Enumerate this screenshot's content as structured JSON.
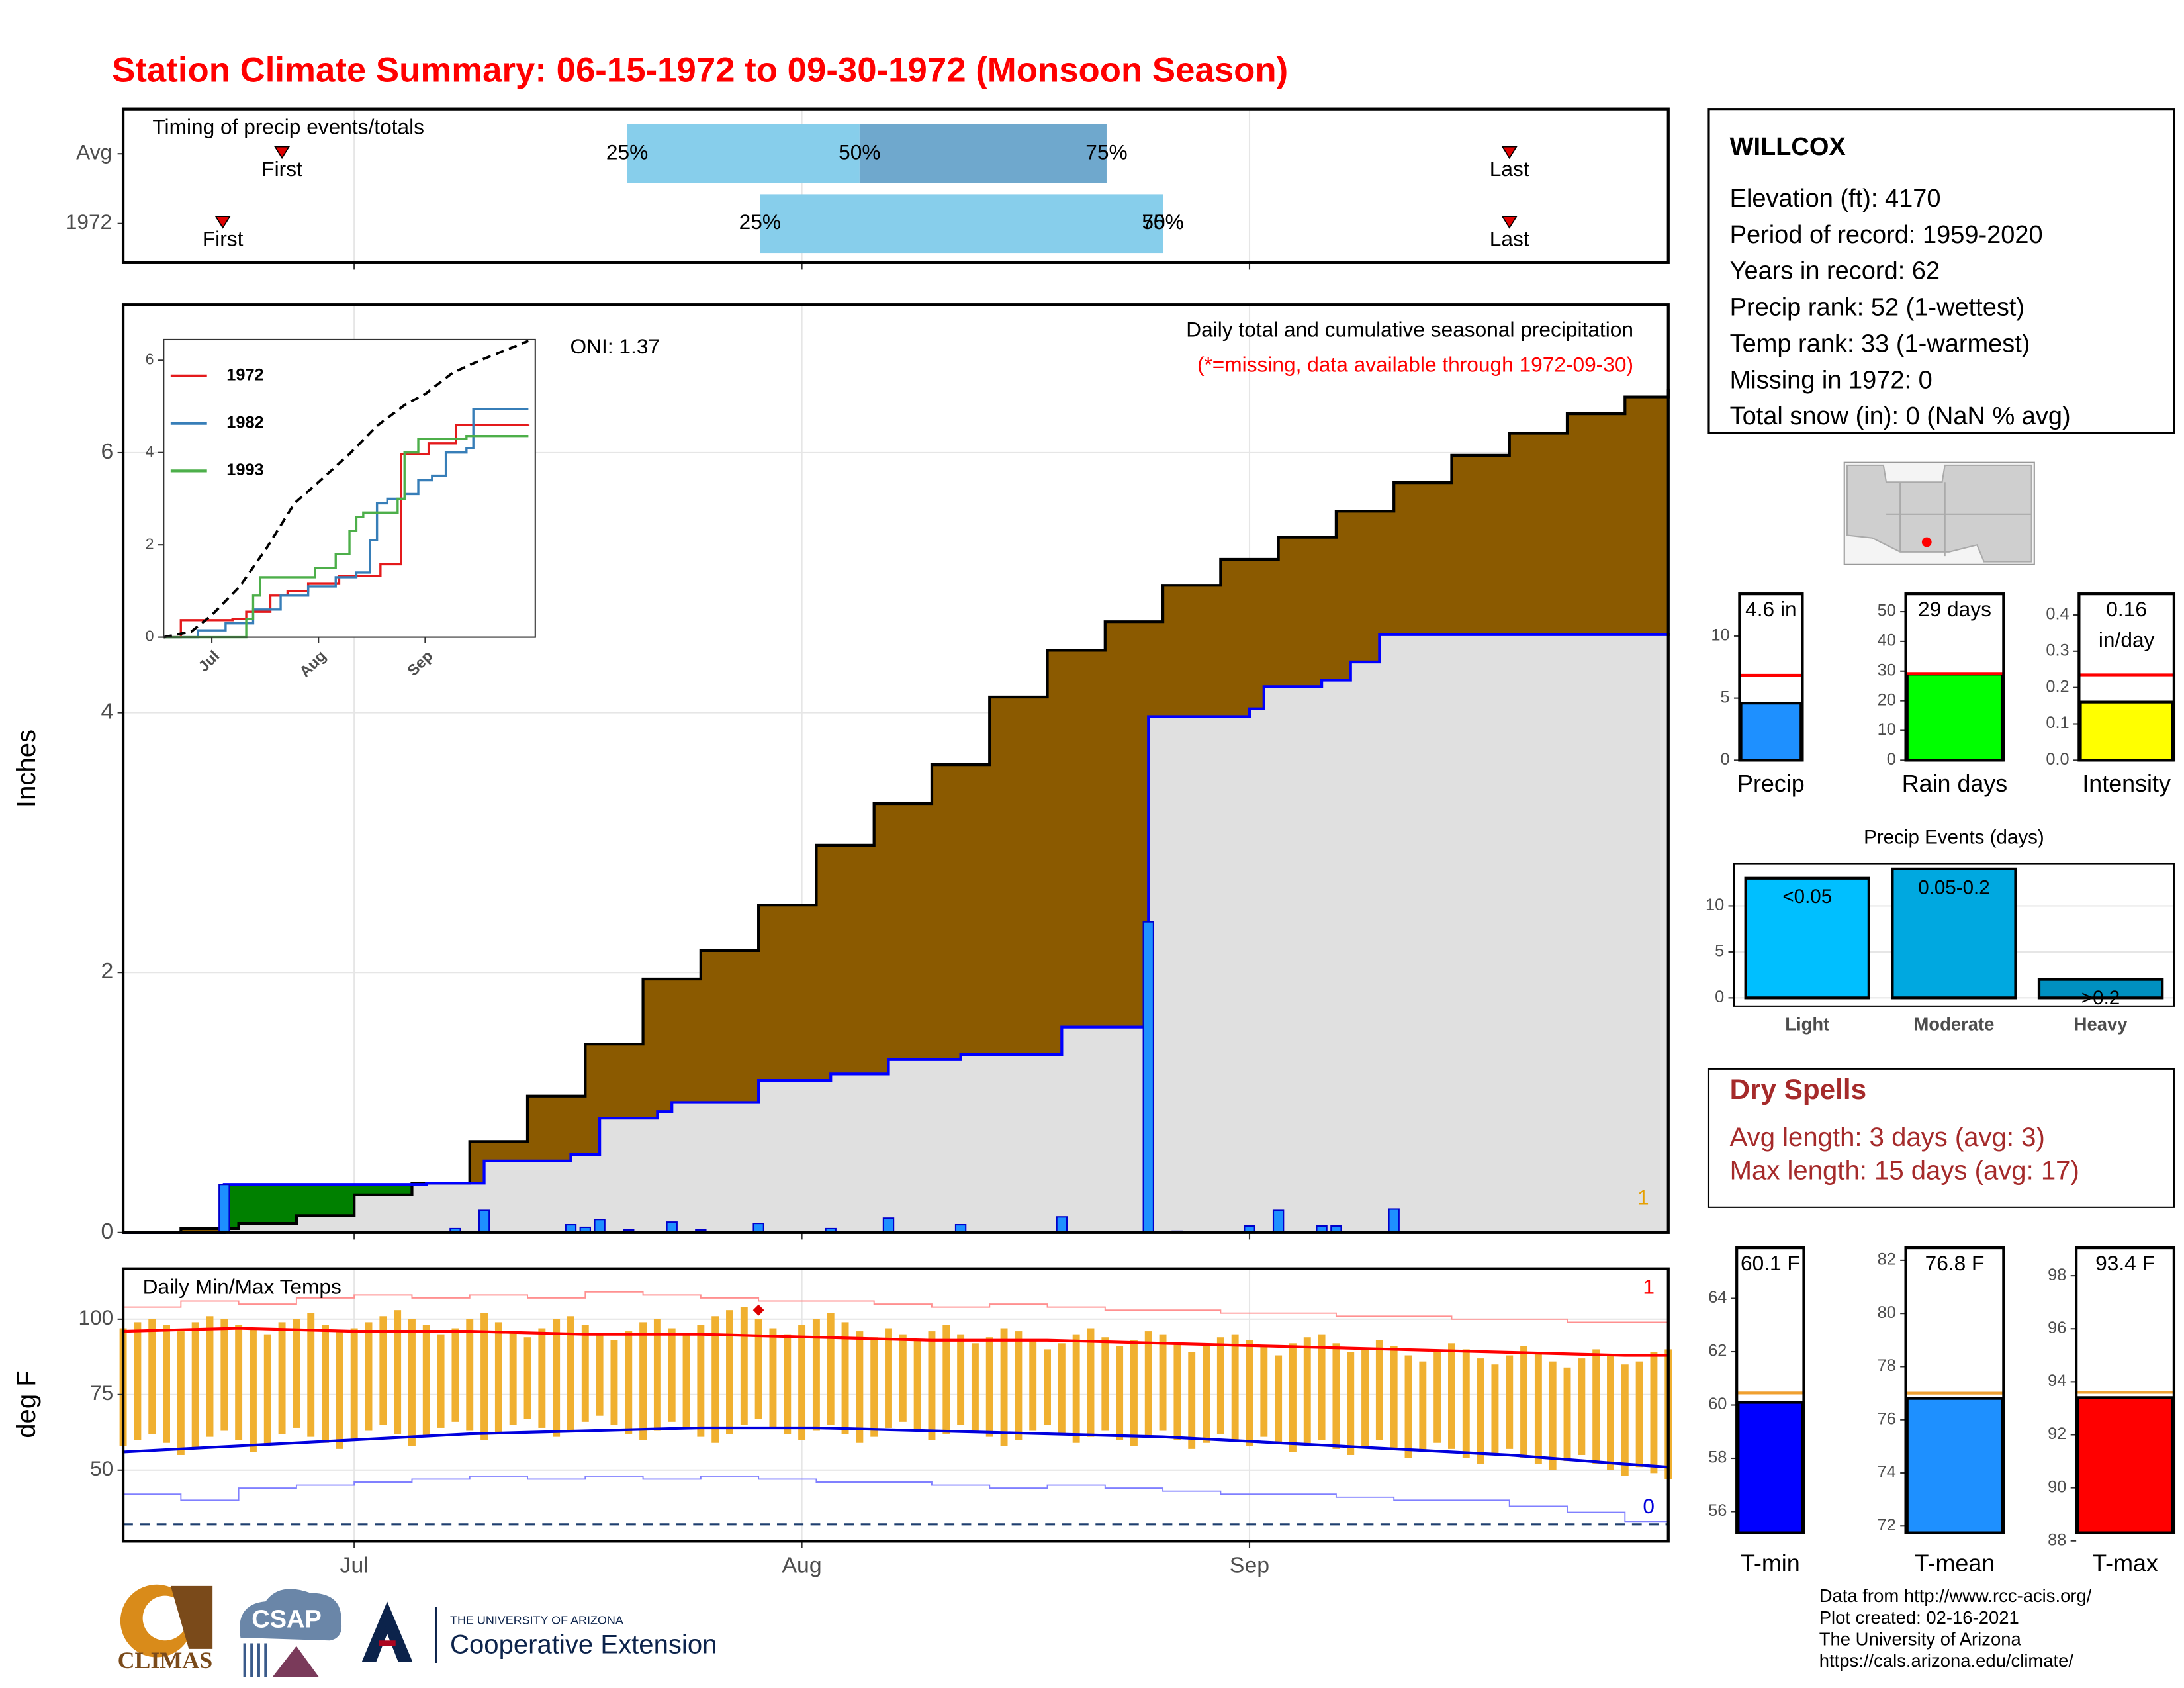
{
  "title": "Station Climate Summary: 06-15-1972 to 09-30-1972 (Monsoon Season)",
  "station": {
    "name": "WILLCOX",
    "lines": [
      "Elevation (ft): 4170",
      "Period of record: 1959-2020",
      "Years in record: 62",
      "Precip rank: 52 (1-wettest)",
      "Temp rank: 33 (1-warmest)",
      "Missing in 1972: 0",
      "Total snow (in): 0 (NaN % avg)"
    ]
  },
  "dry_spells": {
    "title": "Dry Spells",
    "lines": [
      "Avg length: 3 days (avg: 3)",
      "Max length: 15 days (avg: 17)"
    ]
  },
  "footer": [
    "Data from http://www.rcc-acis.org/",
    "Plot created: 02-16-2021",
    "The University of Arizona",
    "https://cals.arizona.edu/climate/"
  ],
  "logos": {
    "climas": "CLIMAS",
    "csap": "CSAP",
    "university": "THE UNIVERSITY OF ARIZONA",
    "extension": "Cooperative Extension"
  },
  "chart_data": [
    {
      "type": "timing",
      "title": "Timing of precip events/totals",
      "xlim": [
        0,
        107
      ],
      "xticks": [
        16,
        47,
        78
      ],
      "rows": [
        "Avg",
        "1972"
      ],
      "first": [
        11,
        6.9
      ],
      "q25": [
        34.9,
        44.1
      ],
      "q50": [
        51,
        72
      ],
      "q75": [
        68.1,
        72
      ],
      "last": [
        96,
        96
      ],
      "first_label": "First",
      "last_label": "Last",
      "quantile_labels": [
        "25%",
        "50%",
        "75%"
      ],
      "colors": [
        "#87ceeb",
        "#6fa8cd"
      ],
      "marker_color": "#e00000"
    },
    {
      "type": "precip",
      "ylabel": "Inches",
      "xlim": [
        0,
        107
      ],
      "ylim": [
        0,
        7.14
      ],
      "xticks": [
        16,
        47,
        78
      ],
      "yticks": [
        0,
        2,
        4,
        6
      ],
      "grid": true,
      "subtitle": "Daily total and cumulative seasonal precipitation",
      "note": "(*=missing, data available through 1972-09-30)",
      "oni": "ONI: 1.37",
      "count_label": "1",
      "average": {
        "x": [
          0,
          4,
          8,
          12,
          16,
          20,
          24,
          28,
          32,
          36,
          40,
          44,
          48,
          52,
          56,
          60,
          64,
          68,
          72,
          76,
          80,
          84,
          88,
          92,
          96,
          100,
          104,
          107
        ],
        "values": [
          0.0,
          0.03,
          0.07,
          0.13,
          0.29,
          0.38,
          0.7,
          1.05,
          1.45,
          1.95,
          2.17,
          2.52,
          2.98,
          3.3,
          3.6,
          4.12,
          4.48,
          4.7,
          4.98,
          5.18,
          5.35,
          5.55,
          5.77,
          5.98,
          6.15,
          6.3,
          6.43,
          6.49
        ]
      },
      "season": {
        "x": [
          0,
          7,
          21,
          25,
          31,
          33,
          37,
          38,
          44,
          49,
          53,
          58,
          65,
          71,
          78,
          79,
          83,
          85,
          87,
          107
        ],
        "values": [
          0,
          0.37,
          0.38,
          0.55,
          0.6,
          0.88,
          0.93,
          1.0,
          1.17,
          1.22,
          1.33,
          1.37,
          1.58,
          3.97,
          4.03,
          4.2,
          4.25,
          4.39,
          4.6,
          4.61
        ]
      },
      "daily": {
        "x": [
          7,
          23,
          25,
          31,
          32,
          33,
          35,
          38,
          40,
          44,
          49,
          53,
          58,
          65,
          71,
          73,
          78,
          80,
          83,
          84,
          88
        ],
        "values": [
          0.37,
          0.03,
          0.17,
          0.06,
          0.04,
          0.1,
          0.02,
          0.08,
          0.02,
          0.07,
          0.03,
          0.11,
          0.06,
          0.12,
          2.39,
          0.01,
          0.05,
          0.17,
          0.05,
          0.05,
          0.18
        ]
      },
      "above_color": "#008000",
      "below_color": "#8b5a00",
      "base_color": "#e0e0e0",
      "line_color": "#0000ff",
      "average_line_color": "#000000",
      "bar_color": "#1e90ff",
      "count_color": "#e69f00"
    },
    {
      "type": "line",
      "xlim": [
        2,
        110
      ],
      "ylim": [
        0,
        6.45
      ],
      "xticks": [
        {
          "value": 16,
          "label": "Jul"
        },
        {
          "value": 47,
          "label": "Aug"
        },
        {
          "value": 78,
          "label": "Sep"
        }
      ],
      "yticks": [
        0,
        2,
        4,
        6
      ],
      "average": {
        "color": "#000000",
        "x": [
          2,
          10,
          16,
          24,
          32,
          40,
          47,
          56,
          64,
          72,
          78,
          86,
          94,
          102,
          108
        ],
        "values": [
          0,
          0.12,
          0.48,
          1.09,
          1.94,
          2.9,
          3.36,
          3.97,
          4.58,
          5.03,
          5.27,
          5.73,
          6.0,
          6.24,
          6.42
        ]
      },
      "series": [
        {
          "name": "1972",
          "color": "#e41a1c",
          "x": [
            2,
            7,
            22,
            26,
            33,
            38,
            44,
            53,
            65,
            71,
            79,
            87,
            108
          ],
          "values": [
            0,
            0.37,
            0.4,
            0.55,
            0.9,
            1.0,
            1.17,
            1.33,
            1.58,
            3.97,
            4.2,
            4.6,
            4.61
          ]
        },
        {
          "name": "1982",
          "color": "#377eb8",
          "x": [
            2,
            12,
            20,
            28,
            36,
            44,
            52,
            58,
            62,
            64,
            67,
            72,
            76,
            80,
            84,
            90,
            92,
            108
          ],
          "values": [
            0,
            0.15,
            0.3,
            0.6,
            0.9,
            1.1,
            1.3,
            1.4,
            2.1,
            2.9,
            3.0,
            3.1,
            3.4,
            3.5,
            4.0,
            4.1,
            4.94,
            4.94
          ]
        },
        {
          "name": "1993",
          "color": "#4daf4a",
          "x": [
            2,
            26,
            28,
            30,
            40,
            46,
            52,
            56,
            58,
            60,
            66,
            70,
            72,
            76,
            78,
            90,
            108
          ],
          "values": [
            0,
            0.4,
            0.9,
            1.3,
            1.3,
            1.5,
            1.8,
            2.3,
            2.6,
            2.7,
            2.7,
            3.0,
            4.0,
            4.3,
            4.3,
            4.36,
            4.36
          ]
        }
      ]
    },
    {
      "type": "temps",
      "title": "Daily Min/Max Temps",
      "ylabel": "deg F",
      "xlim": [
        0,
        107
      ],
      "ylim": [
        26.4,
        116.7
      ],
      "xticks": [
        {
          "value": 16,
          "label": "Jul"
        },
        {
          "value": 47,
          "label": "Aug"
        },
        {
          "value": 78,
          "label": "Sep"
        }
      ],
      "yticks": [
        50,
        75,
        100
      ],
      "grid": true,
      "daily_max": [
        97,
        99,
        100,
        98,
        96,
        99,
        101,
        100,
        98,
        97,
        95,
        99,
        100,
        102,
        98,
        96,
        97,
        99,
        101,
        103,
        100,
        98,
        95,
        97,
        100,
        102,
        99,
        96,
        94,
        97,
        100,
        101,
        98,
        95,
        93,
        96,
        99,
        100,
        97,
        95,
        98,
        101,
        103,
        104,
        100,
        97,
        95,
        98,
        100,
        102,
        99,
        96,
        94,
        97,
        95,
        93,
        96,
        98,
        95,
        92,
        94,
        97,
        96,
        93,
        90,
        92,
        95,
        97,
        94,
        91,
        93,
        96,
        95,
        92,
        89,
        91,
        94,
        95,
        93,
        91,
        88,
        92,
        94,
        95,
        92,
        89,
        90,
        93,
        91,
        88,
        86,
        89,
        92,
        90,
        87,
        85,
        88,
        91,
        89,
        86,
        84,
        87,
        90,
        88,
        85,
        86,
        89,
        90
      ],
      "daily_min": [
        58,
        60,
        62,
        59,
        55,
        57,
        61,
        63,
        60,
        56,
        58,
        62,
        64,
        61,
        59,
        57,
        60,
        63,
        65,
        62,
        58,
        61,
        64,
        66,
        63,
        60,
        62,
        65,
        67,
        64,
        61,
        63,
        66,
        68,
        65,
        62,
        60,
        63,
        66,
        64,
        61,
        59,
        62,
        65,
        67,
        64,
        62,
        60,
        63,
        65,
        62,
        59,
        61,
        64,
        66,
        63,
        60,
        62,
        65,
        63,
        61,
        58,
        60,
        63,
        65,
        62,
        59,
        61,
        63,
        60,
        58,
        61,
        63,
        60,
        57,
        59,
        62,
        60,
        58,
        61,
        59,
        56,
        58,
        60,
        57,
        55,
        58,
        60,
        57,
        54,
        56,
        59,
        57,
        54,
        52,
        55,
        57,
        54,
        52,
        50,
        53,
        55,
        52,
        50,
        48,
        51,
        49,
        47
      ],
      "avg_max": {
        "x": [
          0,
          8,
          16,
          24,
          32,
          40,
          48,
          56,
          64,
          72,
          80,
          88,
          96,
          104,
          107
        ],
        "values": [
          96,
          97,
          96,
          96,
          95,
          95,
          94,
          93,
          93,
          92,
          91,
          90,
          89,
          88,
          88
        ]
      },
      "avg_min": {
        "x": [
          0,
          8,
          16,
          24,
          32,
          40,
          48,
          56,
          64,
          72,
          80,
          88,
          96,
          104,
          107
        ],
        "values": [
          56,
          58,
          60,
          62,
          63,
          64,
          64,
          63,
          62,
          61,
          59,
          57,
          55,
          52,
          51
        ]
      },
      "record_max": {
        "x": [
          0,
          4,
          8,
          12,
          16,
          20,
          24,
          28,
          32,
          36,
          40,
          44,
          48,
          52,
          56,
          60,
          64,
          68,
          72,
          76,
          80,
          84,
          88,
          92,
          96,
          100,
          104,
          107
        ],
        "values": [
          104,
          106,
          105,
          107,
          108,
          107,
          108,
          107,
          109,
          108,
          107,
          106,
          106,
          105,
          104,
          105,
          104,
          103,
          103,
          102,
          102,
          101,
          101,
          100,
          100,
          99,
          99,
          98
        ]
      },
      "record_min": {
        "x": [
          0,
          4,
          8,
          12,
          16,
          20,
          24,
          28,
          32,
          36,
          40,
          44,
          48,
          52,
          56,
          60,
          64,
          68,
          72,
          76,
          80,
          84,
          88,
          92,
          96,
          100,
          104,
          107
        ],
        "values": [
          42,
          40,
          44,
          45,
          46,
          47,
          48,
          47,
          48,
          47,
          48,
          47,
          46,
          46,
          45,
          44,
          45,
          44,
          43,
          42,
          42,
          41,
          40,
          40,
          38,
          36,
          33,
          34
        ]
      },
      "record_day": {
        "x": 44,
        "value": 103
      },
      "freeze": 32,
      "record_count": "1",
      "freeze_count": "0",
      "bar_color": "#f0b030",
      "max_color": "#ff0000",
      "min_color": "#0000dd",
      "record_max_color": "#ff9090",
      "record_min_color": "#8080ff",
      "freeze_color": "#1f3f6f"
    },
    {
      "type": "bar",
      "categories": [
        "Precip"
      ],
      "values": [
        4.6
      ],
      "value_labels": [
        "4.6 in"
      ],
      "average": 6.85,
      "average_color": "#ff0000",
      "color": "#1e90ff",
      "ylim": [
        0,
        13.4
      ],
      "yticks": [
        0,
        5,
        10
      ]
    },
    {
      "type": "bar",
      "categories": [
        "Rain days"
      ],
      "values": [
        29
      ],
      "value_labels": [
        "29 days"
      ],
      "average": 29.2,
      "average_color": "#ff0000",
      "color": "#00ff00",
      "ylim": [
        0,
        56
      ],
      "yticks": [
        0,
        10,
        20,
        30,
        40,
        50
      ]
    },
    {
      "type": "bar",
      "categories": [
        "Intensity"
      ],
      "values": [
        0.16
      ],
      "value_labels": [
        "0.16 in/day"
      ],
      "average": 0.235,
      "average_color": "#ff0000",
      "color": "#ffff00",
      "ylim": [
        0,
        0.458
      ],
      "yticks": [
        {
          "value": 0,
          "label": "0.0"
        },
        0.1,
        0.2,
        0.3,
        0.4
      ]
    },
    {
      "type": "bar",
      "title": "Precip Events (days)",
      "categories": [
        "Light",
        "Moderate",
        "Heavy"
      ],
      "values": [
        13,
        14,
        2
      ],
      "bin_labels": [
        "<0.05",
        "0.05-0.2",
        ">0.2"
      ],
      "colors": [
        "#00bfff",
        "#00a8e0",
        "#0090c0"
      ],
      "ylim": [
        -0.9,
        14.6
      ],
      "yticks": [
        0,
        5,
        10
      ],
      "grid": true
    },
    {
      "type": "bar",
      "categories": [
        "T-min"
      ],
      "values": [
        60.1
      ],
      "value_labels": [
        "60.1 F"
      ],
      "average": 60.45,
      "average_color": "#f0a030",
      "color": "#0000ff",
      "ylim": [
        55.2,
        65.9
      ],
      "yticks": [
        56,
        58,
        60,
        62,
        64
      ]
    },
    {
      "type": "bar",
      "categories": [
        "T-mean"
      ],
      "values": [
        76.8
      ],
      "value_labels": [
        "76.8 F"
      ],
      "average": 77.0,
      "average_color": "#f0a030",
      "color": "#1e90ff",
      "ylim": [
        71.74,
        82.47
      ],
      "yticks": [
        72,
        74,
        76,
        78,
        80,
        82
      ]
    },
    {
      "type": "bar",
      "categories": [
        "T-max"
      ],
      "values": [
        93.4
      ],
      "value_labels": [
        "93.4 F"
      ],
      "average": 93.6,
      "average_color": "#f0a030",
      "color": "#ff0000",
      "ylim": [
        88.3,
        99.05
      ],
      "yticks": [
        88,
        90,
        92,
        94,
        96,
        98
      ]
    }
  ]
}
